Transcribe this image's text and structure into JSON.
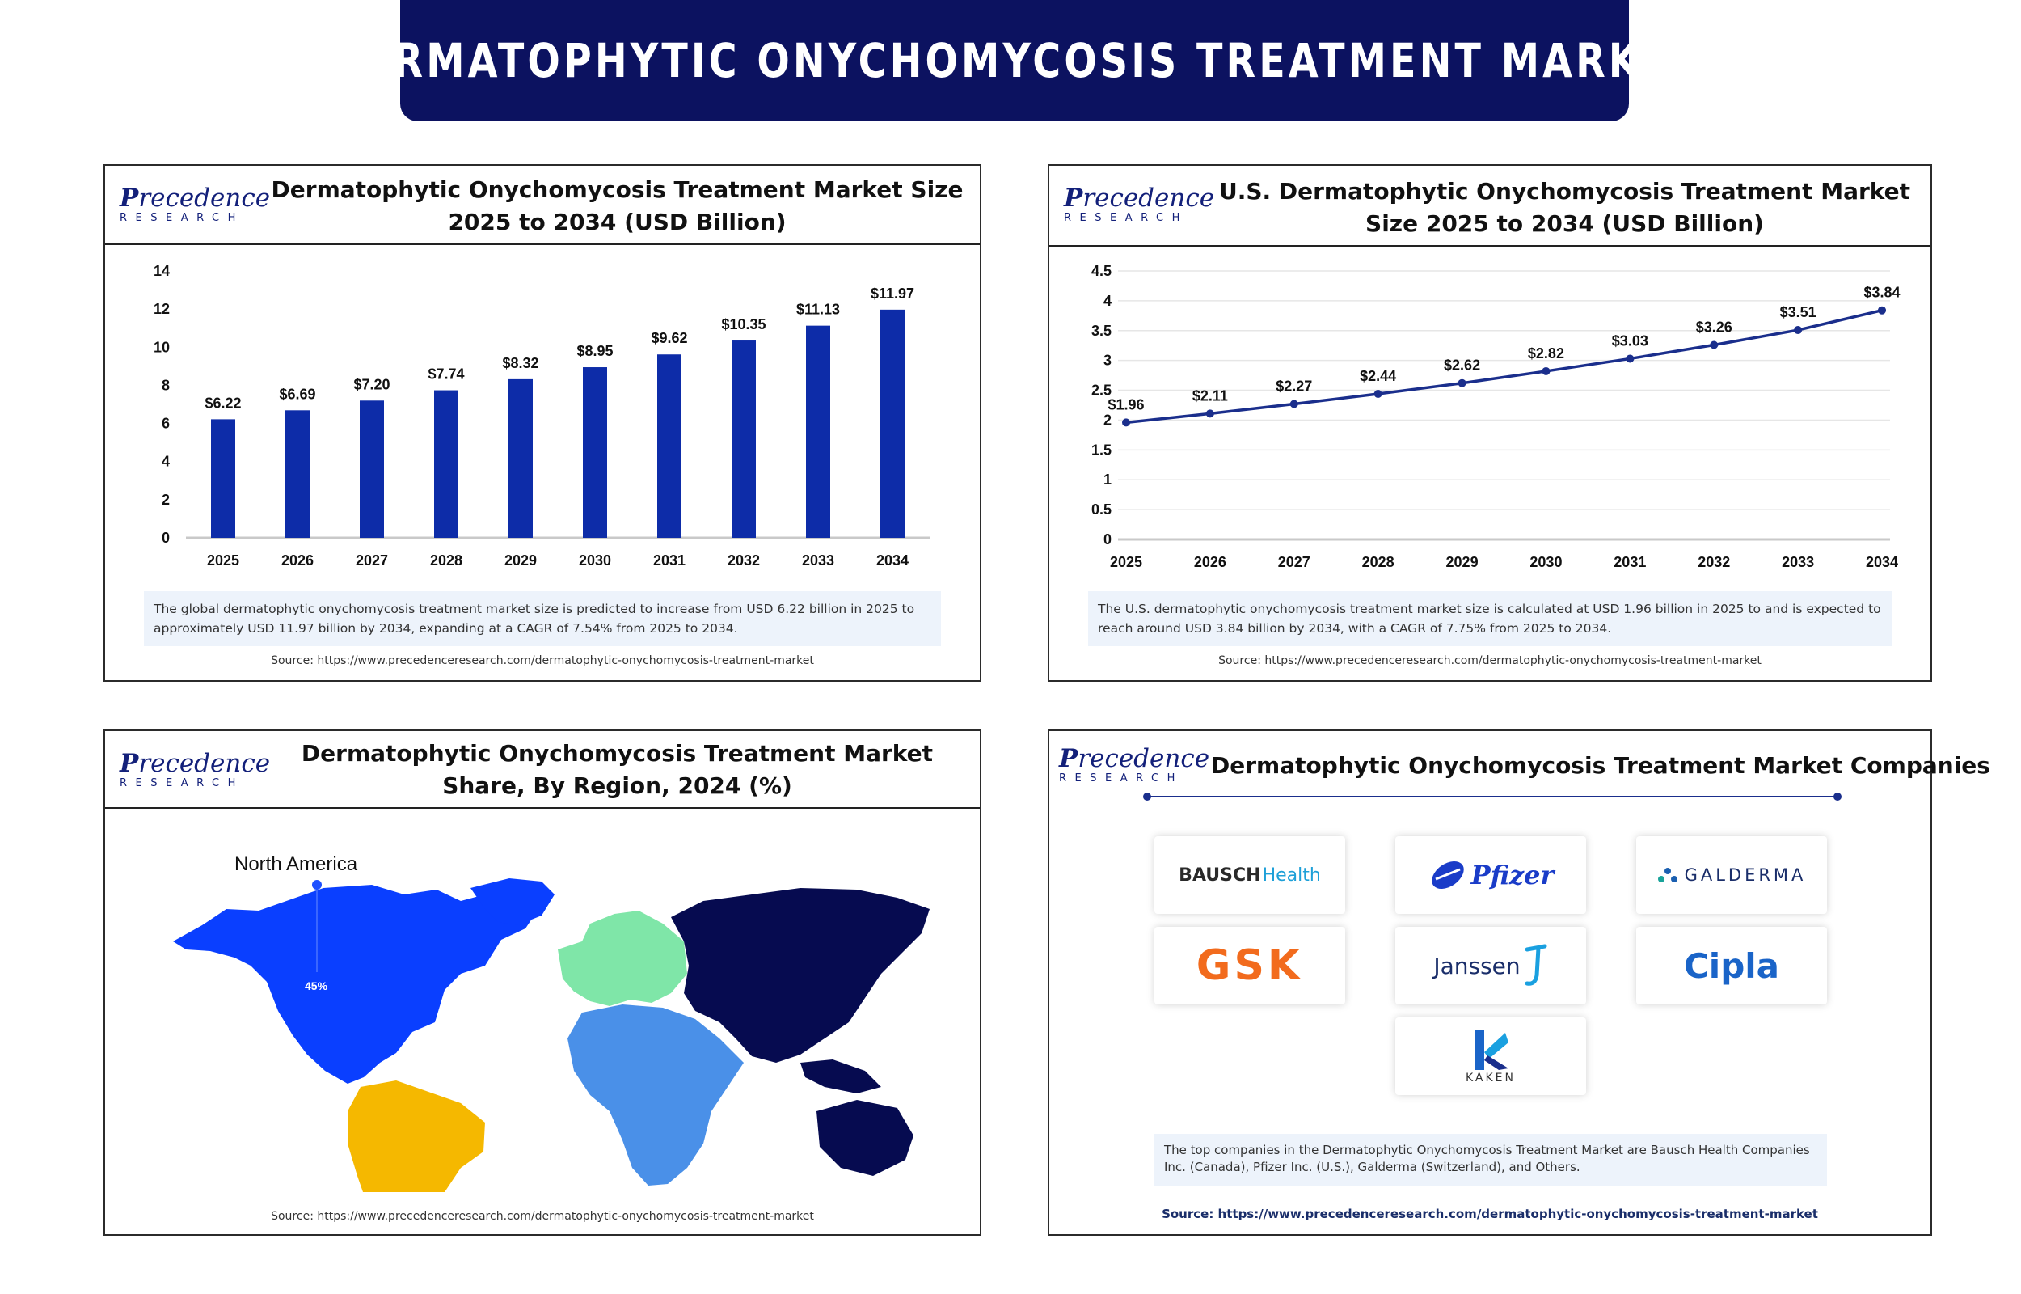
{
  "banner_title": "DERMATOPHYTIC ONYCHOMYCOSIS TREATMENT MARKET",
  "logo": {
    "word": "recedence",
    "initial": "P",
    "sub": "RESEARCH"
  },
  "colors": {
    "banner": "#0c1260",
    "bar": "#0d2ca8",
    "line": "#1a2e8c",
    "north_america": "#0a3fff",
    "europe": "#7fe6a8",
    "asia_pacific": "#060b50",
    "latin_america": "#f5b800",
    "mea": "#4a90e8"
  },
  "panels": {
    "global": {
      "title": "Dermatophytic Onychomycosis Treatment Market Size 2025 to 2034 (USD Billion)",
      "note": "The global dermatophytic onychomycosis treatment market size is predicted to increase from USD 6.22 billion in 2025 to approximately USD 11.97 billion by 2034, expanding at a CAGR of 7.54% from 2025 to 2034.",
      "source": "Source: https://www.precedenceresearch.com/dermatophytic-onychomycosis-treatment-market"
    },
    "us": {
      "title": "U.S. Dermatophytic Onychomycosis Treatment Market Size 2025 to 2034 (USD Billion)",
      "note": "The U.S. dermatophytic onychomycosis treatment market size is calculated at USD 1.96 billion in 2025 to and is expected to reach around USD 3.84 billion by 2034, with a CAGR of 7.75% from 2025 to 2034.",
      "source": "Source: https://www.precedenceresearch.com/dermatophytic-onychomycosis-treatment-market"
    },
    "region": {
      "title": "Dermatophytic Onychomycosis Treatment Market Share, By Region, 2024 (%)",
      "map_label": "North America",
      "map_value": "45%",
      "source": "Source: https://www.precedenceresearch.com/dermatophytic-onychomycosis-treatment-market"
    },
    "companies": {
      "title": "Dermatophytic Onychomycosis Treatment Market Companies",
      "logos": [
        {
          "name": "BAUSCH",
          "suffix": "Health"
        },
        {
          "name": "Pfizer"
        },
        {
          "name": "GALDERMA"
        },
        {
          "name": "GSK"
        },
        {
          "name": "Janssen"
        },
        {
          "name": "Cipla"
        },
        {
          "name": "KAKEN"
        }
      ],
      "note": "The top companies in the Dermatophytic Onychomycosis Treatment Market are Bausch Health Companies Inc. (Canada), Pfizer Inc. (U.S.), Galderma (Switzerland), and Others.",
      "source": "Source: https://www.precedenceresearch.com/dermatophytic-onychomycosis-treatment-market"
    }
  },
  "chart_data": [
    {
      "type": "bar",
      "title": "Dermatophytic Onychomycosis Treatment Market Size 2025 to 2034 (USD Billion)",
      "categories": [
        "2025",
        "2026",
        "2027",
        "2028",
        "2029",
        "2030",
        "2031",
        "2032",
        "2033",
        "2034"
      ],
      "values": [
        6.22,
        6.69,
        7.2,
        7.74,
        8.32,
        8.95,
        9.62,
        10.35,
        11.13,
        11.97
      ],
      "labels": [
        "$6.22",
        "$6.69",
        "$7.20",
        "$7.74",
        "$8.32",
        "$8.95",
        "$9.62",
        "$10.35",
        "$11.13",
        "$11.97"
      ],
      "yticks": [
        "0",
        "2",
        "4",
        "6",
        "8",
        "10",
        "12",
        "14"
      ],
      "ylim": [
        0,
        14
      ],
      "grid": false
    },
    {
      "type": "line",
      "title": "U.S. Dermatophytic Onychomycosis Treatment Market Size 2025 to 2034 (USD Billion)",
      "categories": [
        "2025",
        "2026",
        "2027",
        "2028",
        "2029",
        "2030",
        "2031",
        "2032",
        "2033",
        "2034"
      ],
      "values": [
        1.96,
        2.11,
        2.27,
        2.44,
        2.62,
        2.82,
        3.03,
        3.26,
        3.51,
        3.84
      ],
      "labels": [
        "$1.96",
        "$2.11",
        "$2.27",
        "$2.44",
        "$2.62",
        "$2.82",
        "$3.03",
        "$3.26",
        "$3.51",
        "$3.84"
      ],
      "yticks": [
        "0",
        "0.5",
        "1",
        "1.5",
        "2",
        "2.5",
        "3",
        "3.5",
        "4",
        "4.5"
      ],
      "ylim": [
        0,
        4.5
      ],
      "grid": true
    }
  ]
}
